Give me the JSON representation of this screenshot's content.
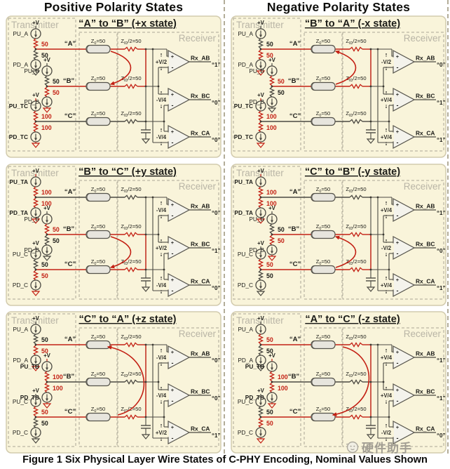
{
  "titles": {
    "left": "Positive Polarity States",
    "right": "Negative Polarity States"
  },
  "caption": "Figure 1 Six Physical Layer Wire States of C-PHY Encoding, Nominal Values Shown",
  "watermark": {
    "text": "硬件助手"
  },
  "shared": {
    "transmitter": "Transmitter",
    "receiver": "Receiver",
    "supply": "+V",
    "z0": {
      "pre": "Z",
      "sub": "0",
      "post": "=50"
    },
    "zid": {
      "pre": "Z",
      "sub": "ID",
      "post": "/2=50"
    },
    "plus": "+",
    "minus": "-"
  },
  "colors": {
    "accent_red": "#c32014",
    "wire": "#4b4942",
    "ink": "#1c1c18",
    "panel_bg": "#f9f4da",
    "panel_border": "#d2cbae",
    "dash": "#aaa695",
    "muted_label": "#b9b5a6",
    "comparator_fill": "#f4f3ec",
    "cylinder_fill": "#e7e5dd",
    "cylinder_stroke": "#55534b",
    "watermark": "#9b978e"
  },
  "panels": [
    {
      "title": "“A” to “B” (+x state)",
      "channels": [
        {
          "id": "A",
          "label": "“A”",
          "role": "high",
          "pu": {
            "label": "PU_A",
            "value": "50",
            "active": true,
            "bold": false
          },
          "pd": {
            "label": "PD_A",
            "value": "50",
            "active": false,
            "bold": false
          }
        },
        {
          "id": "B",
          "label": "“B”",
          "role": "low",
          "pu": {
            "label": "PU_B",
            "value": "50",
            "active": false,
            "bold": false
          },
          "pd": {
            "label": "PD_B",
            "value": "50",
            "active": true,
            "bold": false
          }
        },
        {
          "id": "C",
          "label": "“C”",
          "role": "term",
          "pu": {
            "label": "PU_TC",
            "value": "100",
            "active": true,
            "bold": true
          },
          "pd": {
            "label": "PD_TC",
            "value": "100",
            "active": true,
            "bold": true
          }
        }
      ],
      "arrow": {
        "from": "A",
        "to": "B"
      },
      "comparators": [
        {
          "label": "Rx_AB",
          "voltage": "+V/2",
          "output": "“1”"
        },
        {
          "label": "Rx_BC",
          "voltage": "-V/4",
          "output": "“0”"
        },
        {
          "label": "Rx_CA",
          "voltage": "-V/4",
          "output": "“0”"
        }
      ]
    },
    {
      "title": "“B” to “A” (-x state)",
      "channels": [
        {
          "id": "A",
          "label": "“A”",
          "role": "low",
          "pu": {
            "label": "PU_A",
            "value": "50",
            "active": false,
            "bold": false
          },
          "pd": {
            "label": "PD_A",
            "value": "50",
            "active": true,
            "bold": false
          }
        },
        {
          "id": "B",
          "label": "“B”",
          "role": "high",
          "pu": {
            "label": "PU_B",
            "value": "50",
            "active": true,
            "bold": false
          },
          "pd": {
            "label": "PD_B",
            "value": "50",
            "active": false,
            "bold": false
          }
        },
        {
          "id": "C",
          "label": "“C”",
          "role": "term",
          "pu": {
            "label": "PU_TC",
            "value": "100",
            "active": true,
            "bold": true
          },
          "pd": {
            "label": "PD_TC",
            "value": "100",
            "active": true,
            "bold": true
          }
        }
      ],
      "arrow": {
        "from": "B",
        "to": "A"
      },
      "comparators": [
        {
          "label": "Rx_AB",
          "voltage": "-V/2",
          "output": "“0”"
        },
        {
          "label": "Rx_BC",
          "voltage": "+V/4",
          "output": "“1”"
        },
        {
          "label": "Rx_CA",
          "voltage": "+V/4",
          "output": "“1”"
        }
      ]
    },
    {
      "title": "“B” to “C” (+y state)",
      "channels": [
        {
          "id": "A",
          "label": "“A”",
          "role": "term",
          "pu": {
            "label": "PU_TA",
            "value": "100",
            "active": true,
            "bold": true
          },
          "pd": {
            "label": "PD_TA",
            "value": "100",
            "active": true,
            "bold": true
          }
        },
        {
          "id": "B",
          "label": "“B”",
          "role": "high",
          "pu": {
            "label": "PU_B",
            "value": "50",
            "active": true,
            "bold": false
          },
          "pd": {
            "label": "PD_B",
            "value": "50",
            "active": false,
            "bold": false
          }
        },
        {
          "id": "C",
          "label": "“C”",
          "role": "low",
          "pu": {
            "label": "PU_C",
            "value": "50",
            "active": false,
            "bold": false
          },
          "pd": {
            "label": "PD_C",
            "value": "50",
            "active": true,
            "bold": false
          }
        }
      ],
      "arrow": {
        "from": "B",
        "to": "C"
      },
      "comparators": [
        {
          "label": "Rx_AB",
          "voltage": "-V/4",
          "output": "“0”"
        },
        {
          "label": "Rx_BC",
          "voltage": "+V/2",
          "output": "“1”"
        },
        {
          "label": "Rx_CA",
          "voltage": "-V/4",
          "output": "“0”"
        }
      ]
    },
    {
      "title": "“C” to “B” (-y state)",
      "channels": [
        {
          "id": "A",
          "label": "“A”",
          "role": "term",
          "pu": {
            "label": "PU_TA",
            "value": "100",
            "active": true,
            "bold": true
          },
          "pd": {
            "label": "PD_TA",
            "value": "100",
            "active": true,
            "bold": true
          }
        },
        {
          "id": "B",
          "label": "“B”",
          "role": "low",
          "pu": {
            "label": "PU_B",
            "value": "50",
            "active": false,
            "bold": false
          },
          "pd": {
            "label": "PD_B",
            "value": "50",
            "active": true,
            "bold": false
          }
        },
        {
          "id": "C",
          "label": "“C”",
          "role": "high",
          "pu": {
            "label": "PU_C",
            "value": "50",
            "active": true,
            "bold": false
          },
          "pd": {
            "label": "PD_C",
            "value": "50",
            "active": false,
            "bold": false
          }
        }
      ],
      "arrow": {
        "from": "C",
        "to": "B"
      },
      "comparators": [
        {
          "label": "Rx_AB",
          "voltage": "+V/4",
          "output": "“1”"
        },
        {
          "label": "Rx_BC",
          "voltage": "-V/2",
          "output": "“0”"
        },
        {
          "label": "Rx_CA",
          "voltage": "+V/4",
          "output": "“1”"
        }
      ]
    },
    {
      "title": "“C” to “A” (+z state)",
      "channels": [
        {
          "id": "A",
          "label": "“A”",
          "role": "low",
          "pu": {
            "label": "PU_A",
            "value": "50",
            "active": false,
            "bold": false
          },
          "pd": {
            "label": "PD_A",
            "value": "50",
            "active": true,
            "bold": false
          }
        },
        {
          "id": "B",
          "label": "“B”",
          "role": "term",
          "pu": {
            "label": "PU_TB",
            "value": "100",
            "active": true,
            "bold": true
          },
          "pd": {
            "label": "PD_TB",
            "value": "100",
            "active": true,
            "bold": true
          }
        },
        {
          "id": "C",
          "label": "“C”",
          "role": "high",
          "pu": {
            "label": "PU_C",
            "value": "50",
            "active": true,
            "bold": false
          },
          "pd": {
            "label": "PD_C",
            "value": "50",
            "active": false,
            "bold": false
          }
        }
      ],
      "arrow": {
        "from": "C",
        "to": "A"
      },
      "comparators": [
        {
          "label": "Rx_AB",
          "voltage": "-V/4",
          "output": "“0”"
        },
        {
          "label": "Rx_BC",
          "voltage": "-V/4",
          "output": "“0”"
        },
        {
          "label": "Rx_CA",
          "voltage": "+V/2",
          "output": "“1”"
        }
      ]
    },
    {
      "title": "“A” to “C” (-z state)",
      "channels": [
        {
          "id": "A",
          "label": "“A”",
          "role": "high",
          "pu": {
            "label": "PU_A",
            "value": "50",
            "active": true,
            "bold": false
          },
          "pd": {
            "label": "PD_A",
            "value": "50",
            "active": false,
            "bold": false
          }
        },
        {
          "id": "B",
          "label": "“B”",
          "role": "term",
          "pu": {
            "label": "PU_TB",
            "value": "100",
            "active": true,
            "bold": true
          },
          "pd": {
            "label": "PD_TB",
            "value": "100",
            "active": true,
            "bold": true
          }
        },
        {
          "id": "C",
          "label": "“C”",
          "role": "low",
          "pu": {
            "label": "PU_C",
            "value": "50",
            "active": false,
            "bold": false
          },
          "pd": {
            "label": "PD_C",
            "value": "50",
            "active": true,
            "bold": false
          }
        }
      ],
      "arrow": {
        "from": "A",
        "to": "C"
      },
      "comparators": [
        {
          "label": "Rx_AB",
          "voltage": "+V/4",
          "output": "“1”"
        },
        {
          "label": "Rx_BC",
          "voltage": "+V/4",
          "output": "“1”"
        },
        {
          "label": "Rx_CA",
          "voltage": "-V/2",
          "output": "“0”"
        }
      ]
    }
  ]
}
